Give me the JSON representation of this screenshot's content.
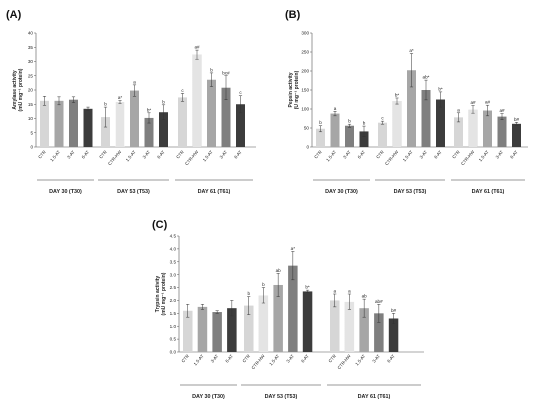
{
  "chart_data": [
    {
      "type": "bar",
      "panel": "(A)",
      "ylabel": "Amylase activity",
      "yunit": "(mU mg⁻¹ protein)",
      "ylim": [
        0,
        40
      ],
      "yticks": [
        0,
        5,
        10,
        15,
        20,
        25,
        30,
        35,
        40
      ],
      "groups": [
        {
          "label": "DAY 30 (T30)",
          "bars": [
            {
              "cat": "CTR",
              "value": 16.2,
              "err": 1.6,
              "style": "light",
              "sig": ""
            },
            {
              "cat": "1.5-AT",
              "value": 16.2,
              "err": 1.4,
              "style": "mid",
              "sig": ""
            },
            {
              "cat": "3-AT",
              "value": 16.6,
              "err": 1.0,
              "style": "dark",
              "sig": ""
            },
            {
              "cat": "6-AT",
              "value": 13.4,
              "err": 0.6,
              "style": "darkest",
              "sig": ""
            }
          ]
        },
        {
          "label": "DAY 53 (T53)",
          "bars": [
            {
              "cat": "CTR",
              "value": 10.5,
              "err": 3.5,
              "style": "light",
              "sig": "b"
            },
            {
              "cat": "CTR-HW",
              "value": 15.8,
              "err": 0.5,
              "style": "dotted",
              "sig": "a*"
            },
            {
              "cat": "1.5-AT",
              "value": 19.8,
              "err": 2.0,
              "style": "mid",
              "sig": "a"
            },
            {
              "cat": "3-AT",
              "value": 10.2,
              "err": 1.8,
              "style": "dark",
              "sig": "b*"
            },
            {
              "cat": "6-AT",
              "value": 12.2,
              "err": 2.6,
              "style": "darkest",
              "sig": "b"
            }
          ]
        },
        {
          "label": "DAY 61 (T61)",
          "bars": [
            {
              "cat": "CTR",
              "value": 17.4,
              "err": 1.4,
              "style": "light",
              "sig": "c"
            },
            {
              "cat": "CTR-HW",
              "value": 32.4,
              "err": 1.6,
              "style": "dotted",
              "sig": "a#"
            },
            {
              "cat": "1.5-AT",
              "value": 23.6,
              "err": 2.4,
              "style": "mid",
              "sig": "b"
            },
            {
              "cat": "3-AT",
              "value": 20.8,
              "err": 4.2,
              "style": "dark",
              "sig": "bc#"
            },
            {
              "cat": "6-AT",
              "value": 15.0,
              "err": 3.0,
              "style": "darkest",
              "sig": "c"
            }
          ]
        }
      ]
    },
    {
      "type": "bar",
      "panel": "(B)",
      "ylabel": "Pepsin activity",
      "yunit": "(U mg⁻¹ protein)",
      "ylim": [
        0,
        300
      ],
      "yticks": [
        0,
        50,
        100,
        150,
        200,
        250,
        300
      ],
      "groups": [
        {
          "label": "DAY 30 (T30)",
          "bars": [
            {
              "cat": "CTR",
              "value": 48,
              "err": 8,
              "style": "light",
              "sig": "b"
            },
            {
              "cat": "1.5-AT",
              "value": 88,
              "err": 6,
              "style": "mid",
              "sig": "a"
            },
            {
              "cat": "3-AT",
              "value": 56,
              "err": 4,
              "style": "dark",
              "sig": "b"
            },
            {
              "cat": "6-AT",
              "value": 41,
              "err": 14,
              "style": "darkest",
              "sig": "b"
            }
          ]
        },
        {
          "label": "DAY 53 (T53)",
          "bars": [
            {
              "cat": "CTR",
              "value": 64,
              "err": 4,
              "style": "light",
              "sig": "c"
            },
            {
              "cat": "CTR-HW",
              "value": 121,
              "err": 8,
              "style": "dotted",
              "sig": "b*"
            },
            {
              "cat": "1.5-AT",
              "value": 202,
              "err": 44,
              "style": "mid",
              "sig": "a*"
            },
            {
              "cat": "3-AT",
              "value": 150,
              "err": 26,
              "style": "dark",
              "sig": "ab*"
            },
            {
              "cat": "6-AT",
              "value": 125,
              "err": 20,
              "style": "darkest",
              "sig": "b*"
            }
          ]
        },
        {
          "label": "DAY 61 (T61)",
          "bars": [
            {
              "cat": "CTR",
              "value": 78,
              "err": 12,
              "style": "light",
              "sig": "a"
            },
            {
              "cat": "CTR-HW",
              "value": 99,
              "err": 10,
              "style": "dotted",
              "sig": "a#"
            },
            {
              "cat": "1.5-AT",
              "value": 96,
              "err": 14,
              "style": "mid",
              "sig": "a#"
            },
            {
              "cat": "3-AT",
              "value": 80,
              "err": 8,
              "style": "dark",
              "sig": "a#"
            },
            {
              "cat": "6-AT",
              "value": 61,
              "err": 4,
              "style": "darkest",
              "sig": "b#"
            }
          ]
        }
      ]
    },
    {
      "type": "bar",
      "panel": "(C)",
      "ylabel": "Trypsin activity",
      "yunit": "(mU mg⁻¹ protein)",
      "ylim": [
        0,
        4.5
      ],
      "yticks": [
        0,
        0.5,
        1.0,
        1.5,
        2.0,
        2.5,
        3.0,
        3.5,
        4.0,
        4.5
      ],
      "groups": [
        {
          "label": "DAY 30 (T30)",
          "bars": [
            {
              "cat": "CTR",
              "value": 1.6,
              "err": 0.25,
              "style": "light",
              "sig": ""
            },
            {
              "cat": "1.5-AT",
              "value": 1.75,
              "err": 0.1,
              "style": "mid",
              "sig": ""
            },
            {
              "cat": "3-AT",
              "value": 1.55,
              "err": 0.05,
              "style": "dark",
              "sig": ""
            },
            {
              "cat": "6-AT",
              "value": 1.7,
              "err": 0.3,
              "style": "darkest",
              "sig": ""
            }
          ]
        },
        {
          "label": "DAY 53 (T53)",
          "bars": [
            {
              "cat": "CTR",
              "value": 1.8,
              "err": 0.35,
              "style": "light",
              "sig": "b"
            },
            {
              "cat": "CTR-HW",
              "value": 2.2,
              "err": 0.3,
              "style": "dotted",
              "sig": "b"
            },
            {
              "cat": "1.5-AT",
              "value": 2.6,
              "err": 0.45,
              "style": "mid",
              "sig": "ab"
            },
            {
              "cat": "3-AT",
              "value": 3.35,
              "err": 0.55,
              "style": "dark",
              "sig": "a*"
            },
            {
              "cat": "6-AT",
              "value": 2.35,
              "err": 0.05,
              "style": "darkest",
              "sig": "b*"
            }
          ]
        },
        {
          "label": "DAY 61 (T61)",
          "bars": [
            {
              "cat": "CTR",
              "value": 2.0,
              "err": 0.25,
              "style": "light",
              "sig": "a"
            },
            {
              "cat": "CTR-HW",
              "value": 1.95,
              "err": 0.3,
              "style": "dotted",
              "sig": "a"
            },
            {
              "cat": "1.5-AT",
              "value": 1.7,
              "err": 0.35,
              "style": "mid",
              "sig": "ab"
            },
            {
              "cat": "3-AT",
              "value": 1.5,
              "err": 0.35,
              "style": "dark",
              "sig": "ab#"
            },
            {
              "cat": "6-AT",
              "value": 1.3,
              "err": 0.2,
              "style": "darkest",
              "sig": "b#"
            }
          ]
        }
      ]
    }
  ],
  "colors": {
    "light": "#d6d6d6",
    "mid": "#a6a6a6",
    "dark": "#7f7f7f",
    "darkest": "#3c3c3c",
    "dotted_bg": "#f2f2f2",
    "dotted_dot": "#a0a0a0",
    "axis": "#555555"
  }
}
